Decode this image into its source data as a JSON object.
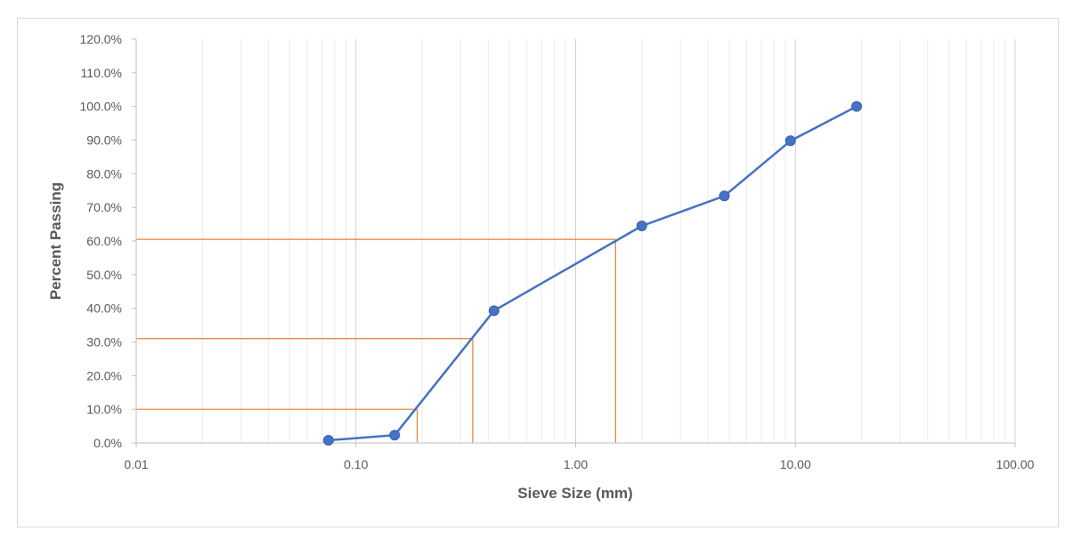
{
  "chart_data": {
    "type": "scatter",
    "xlabel": "Sieve Size (mm)",
    "ylabel": "Percent Passing",
    "x_scale": "log",
    "xlim": [
      0.01,
      100
    ],
    "ylim": [
      0,
      120
    ],
    "x_ticks": [
      0.01,
      0.1,
      1,
      10,
      100
    ],
    "x_tick_labels": [
      "0.01",
      "0.10",
      "1.00",
      "10.00",
      "100.00"
    ],
    "y_ticks": [
      0,
      10,
      20,
      30,
      40,
      50,
      60,
      70,
      80,
      90,
      100,
      110,
      120
    ],
    "y_tick_labels": [
      "0.0%",
      "10.0%",
      "20.0%",
      "30.0%",
      "40.0%",
      "50.0%",
      "60.0%",
      "70.0%",
      "80.0%",
      "90.0%",
      "100.0%",
      "110.0%",
      "120.0%"
    ],
    "grid": {
      "major": true,
      "minor_x": true
    },
    "series": [
      {
        "color": "#4472c4",
        "marker": "circle",
        "x": [
          0.075,
          0.15,
          0.425,
          2.0,
          4.75,
          9.5,
          19.0
        ],
        "y": [
          0.8,
          2.3,
          39.3,
          64.5,
          73.4,
          89.8,
          100.0
        ]
      }
    ],
    "reference_lines": [
      {
        "color": "#ed7d31",
        "x": 0.19,
        "y": 10
      },
      {
        "color": "#ed7d31",
        "x": 0.34,
        "y": 31
      },
      {
        "color": "#ed7d31",
        "x": 1.52,
        "y": 60.5
      }
    ]
  }
}
